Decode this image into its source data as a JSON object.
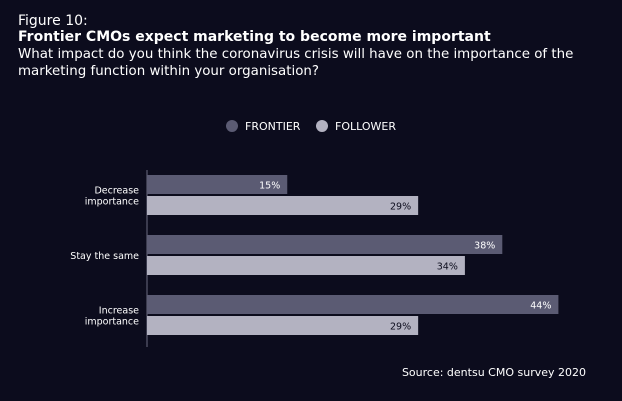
{
  "figure_label": "Figure 10:",
  "title": "Frontier CMOs expect marketing to become more important",
  "subtitle": "What impact do you think the coronavirus crisis will have on the importance of the marketing function within your organisation?",
  "source": "Source: dentsu CMO survey 2020",
  "colors": {
    "frontier": "#5b5b73",
    "follower": "#b3b2c1",
    "background": "#0c0c1d"
  },
  "chart_data": {
    "type": "bar",
    "orientation": "horizontal",
    "categories": [
      [
        "Decrease",
        "importance"
      ],
      [
        "Stay the same"
      ],
      [
        "Increase",
        "importance"
      ]
    ],
    "series": [
      {
        "name": "FRONTIER",
        "values": [
          15,
          38,
          44
        ],
        "labels": [
          "15%",
          "38%",
          "44%"
        ]
      },
      {
        "name": "FOLLOWER",
        "values": [
          29,
          34,
          29
        ],
        "labels": [
          "29%",
          "34%",
          "29%"
        ]
      }
    ],
    "unit": "%",
    "legend_position": "top-center",
    "grid": false
  }
}
